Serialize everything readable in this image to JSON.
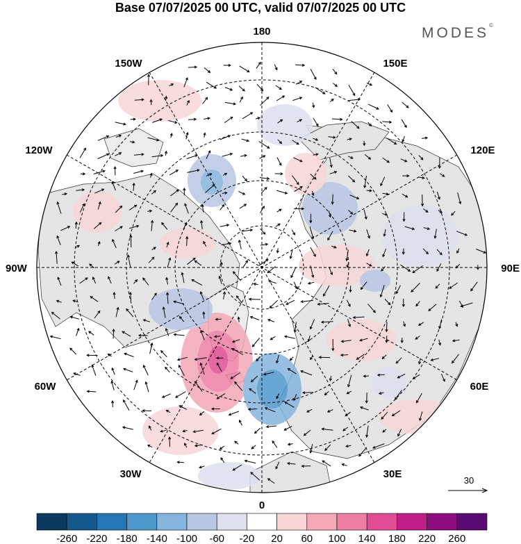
{
  "header": {
    "title": "Base 07/07/2025 00 UTC, valid 07/07/2025 00 UTC",
    "brand": "MODES",
    "brand_mark": "©"
  },
  "map": {
    "projection": "north-polar-stereographic",
    "longitude_labels": {
      "top": "180",
      "bottom": "0",
      "left": "90W",
      "right": "90E",
      "top_left_1": "150W",
      "top_left_2": "120W",
      "top_right_1": "150E",
      "top_right_2": "120E",
      "bottom_left_1": "60W",
      "bottom_left_2": "30W",
      "bottom_right_1": "60E",
      "bottom_right_2": "30E"
    },
    "land_color": "#e5e5e5",
    "ocean_color": "#ffffff",
    "gridline_style": "dashed",
    "vector_reference": {
      "label": "30"
    }
  },
  "colorbar": {
    "tick_labels": [
      "-260",
      "-220",
      "-180",
      "-140",
      "-100",
      "-60",
      "-20",
      "20",
      "60",
      "100",
      "140",
      "180",
      "220",
      "260"
    ],
    "colors": [
      "#0b3a5e",
      "#15588c",
      "#2476b4",
      "#4e98cc",
      "#85b4dd",
      "#b9c6e4",
      "#dfe0ef",
      "#ffffff",
      "#f8d6d8",
      "#f4a8b8",
      "#ee7fa4",
      "#e14d94",
      "#c11f88",
      "#8e0e80",
      "#5a0a72"
    ]
  }
}
